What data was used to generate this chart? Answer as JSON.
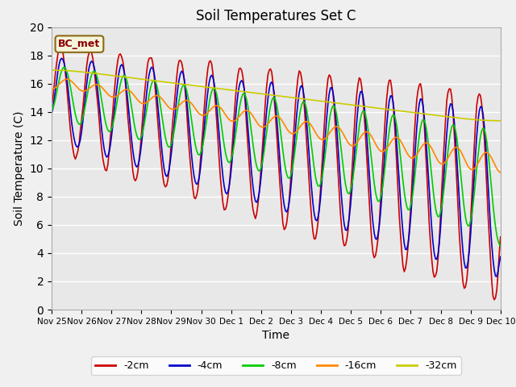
{
  "title": "Soil Temperatures Set C",
  "xlabel": "Time",
  "ylabel": "Soil Temperature (C)",
  "ylim": [
    0,
    20
  ],
  "yticks": [
    0,
    2,
    4,
    6,
    8,
    10,
    12,
    14,
    16,
    18,
    20
  ],
  "annotation": "BC_met",
  "bg_color": "#e8e8e8",
  "fig_bg_color": "#f0f0f0",
  "legend": [
    "-2cm",
    "-4cm",
    "-8cm",
    "-16cm",
    "-32cm"
  ],
  "colors": [
    "#cc0000",
    "#0000cc",
    "#00cc00",
    "#ff8800",
    "#cccc00"
  ],
  "x_labels": [
    "Nov 25",
    "Nov 26",
    "Nov 27",
    "Nov 28",
    "Nov 29",
    "Nov 30",
    "Dec 1",
    "Dec 2",
    "Dec 3",
    "Dec 4",
    "Dec 5",
    "Dec 6",
    "Dec 7",
    "Dec 8",
    "Dec 9",
    "Dec 10"
  ],
  "linewidth": 1.2
}
